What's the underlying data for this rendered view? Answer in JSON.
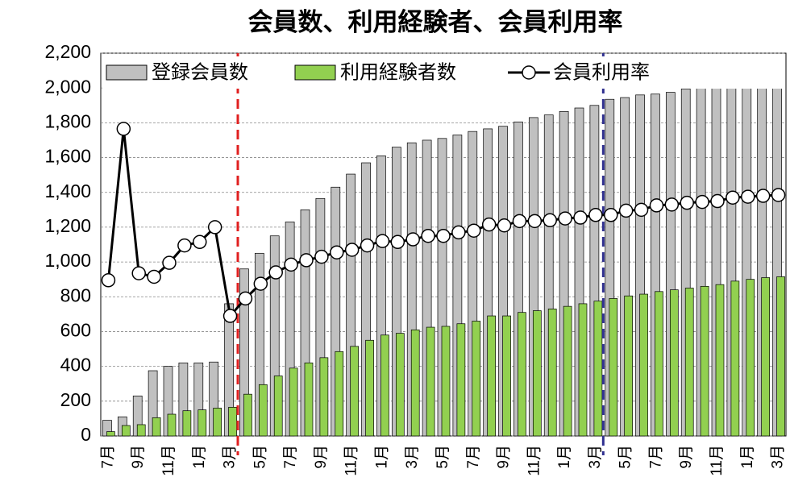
{
  "chart_data": {
    "type": "bar_line",
    "title": "会員数、利用経験者、会員利用率",
    "categories": [
      "7月",
      null,
      "9月",
      null,
      "11月",
      null,
      "1月",
      null,
      "3月",
      null,
      "5月",
      null,
      "7月",
      null,
      "9月",
      null,
      "11月",
      null,
      "1月",
      null,
      "3月",
      null,
      "5月",
      null,
      "7月",
      null,
      "9月",
      null,
      "11月",
      null,
      "1月",
      null,
      "3月",
      null,
      "5月",
      null,
      "7月",
      null,
      "9月",
      null,
      "11月",
      null,
      "1月",
      null,
      "3月"
    ],
    "series": [
      {
        "name": "登録会員数",
        "kind": "bar",
        "color": "#c0c0c0",
        "values": [
          90,
          110,
          230,
          375,
          400,
          420,
          420,
          425,
          760,
          960,
          1050,
          1150,
          1230,
          1300,
          1365,
          1430,
          1505,
          1570,
          1610,
          1660,
          1685,
          1700,
          1710,
          1730,
          1750,
          1765,
          1780,
          1805,
          1830,
          1845,
          1865,
          1885,
          1900,
          1935,
          1945,
          1960,
          1965,
          1975,
          1995,
          2005,
          2020,
          2040,
          2055,
          2065,
          2075
        ]
      },
      {
        "name": "利用経験者数",
        "kind": "bar",
        "color": "#92d050",
        "values": [
          25,
          60,
          65,
          105,
          125,
          145,
          150,
          160,
          165,
          240,
          295,
          345,
          390,
          420,
          450,
          485,
          515,
          550,
          580,
          590,
          610,
          625,
          630,
          645,
          660,
          690,
          690,
          710,
          720,
          730,
          745,
          760,
          775,
          790,
          805,
          815,
          830,
          840,
          850,
          860,
          870,
          890,
          900,
          910,
          915
        ]
      },
      {
        "name": "会員利用率",
        "kind": "line",
        "color": "#000000",
        "values": [
          895,
          1765,
          935,
          915,
          995,
          1095,
          1115,
          1200,
          690,
          790,
          875,
          940,
          985,
          1010,
          1030,
          1055,
          1070,
          1095,
          1120,
          1115,
          1130,
          1150,
          1150,
          1170,
          1180,
          1215,
          1210,
          1235,
          1235,
          1240,
          1250,
          1255,
          1270,
          1270,
          1295,
          1300,
          1325,
          1330,
          1340,
          1345,
          1350,
          1370,
          1375,
          1380,
          1385
        ]
      }
    ],
    "ylim": [
      0,
      2200
    ],
    "yticks": [
      0,
      200,
      400,
      600,
      800,
      {
        "value": 1000,
        "label": "1,000"
      },
      {
        "value": 1200,
        "label": "1,200"
      },
      {
        "value": 1400,
        "label": "1,400"
      },
      {
        "value": 1600,
        "label": "1,600"
      },
      {
        "value": 1800,
        "label": "1,800"
      },
      {
        "value": 2000,
        "label": "2,000"
      },
      {
        "value": 2200,
        "label": "2,200"
      }
    ],
    "grid": true,
    "legend": "top",
    "reference_lines": [
      {
        "x": 8.5,
        "color": "#e02020"
      },
      {
        "x": 32.5,
        "color": "#303090"
      }
    ]
  }
}
